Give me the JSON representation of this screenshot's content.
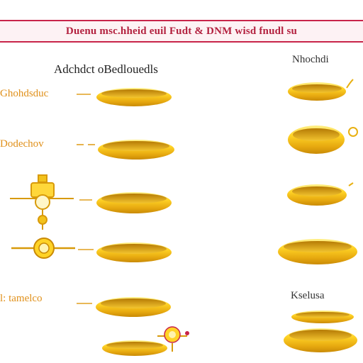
{
  "banner": {
    "title": "Duenu msc.hheid euil Fudt & DNM wisd fnudl su"
  },
  "left_column": {
    "heading": "Adchdct oBedlouedls"
  },
  "right_column": {
    "heading_top": "Nhochdi",
    "heading_bottom": "Kselusa"
  },
  "labels": [
    {
      "text": "Ghohdsduc"
    },
    {
      "text": "Dodechov"
    },
    {
      "text": "l: tamelco"
    }
  ],
  "colors": {
    "banner_border": "#c8244a",
    "banner_text": "#b3213f",
    "gold_dark": "#d89a0a",
    "gold_light": "#ffe45a",
    "label_gold": "#e0901a"
  },
  "icons": [
    "ring-icon",
    "pendant-ornament-icon",
    "coin-ornament-icon",
    "clasp-ornament-icon"
  ]
}
